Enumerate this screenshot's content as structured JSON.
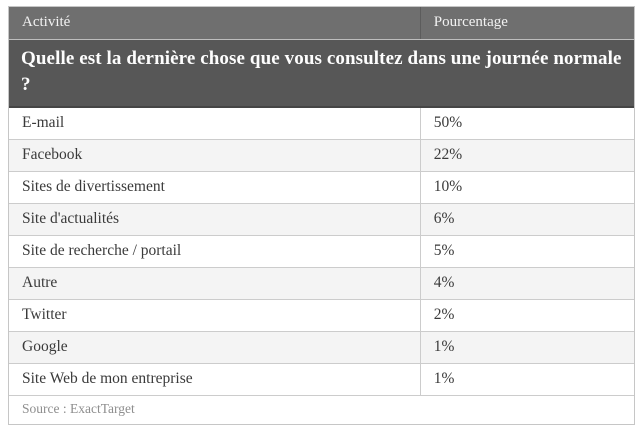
{
  "table": {
    "title": "Quelle est la dernière chose que vous consultez dans une journée normale ?",
    "columns": {
      "activity": "Activité",
      "percent": "Pourcentage"
    },
    "rows": [
      {
        "activity": "E-mail",
        "percent": "50%"
      },
      {
        "activity": "Facebook",
        "percent": "22%"
      },
      {
        "activity": "Sites de divertissement",
        "percent": "10%"
      },
      {
        "activity": "Site d'actualités",
        "percent": "6%"
      },
      {
        "activity": "Site de recherche / portail",
        "percent": "5%"
      },
      {
        "activity": "Autre",
        "percent": "4%"
      },
      {
        "activity": "Twitter",
        "percent": "2%"
      },
      {
        "activity": "Google",
        "percent": "1%"
      },
      {
        "activity": "Site Web de mon entreprise",
        "percent": "1%"
      }
    ],
    "source": "Source : ExactTarget"
  },
  "chart_data": {
    "type": "table",
    "title": "Quelle est la dernière chose que vous consultez dans une journée normale ?",
    "columns": [
      "Activité",
      "Pourcentage"
    ],
    "categories": [
      "E-mail",
      "Facebook",
      "Sites de divertissement",
      "Site d'actualités",
      "Site de recherche / portail",
      "Autre",
      "Twitter",
      "Google",
      "Site Web de mon entreprise"
    ],
    "values": [
      50,
      22,
      10,
      6,
      5,
      4,
      2,
      1,
      1
    ],
    "unit": "%",
    "source": "ExactTarget"
  },
  "colors": {
    "title_bg": "#575757",
    "header_bg": "#6f6f6f",
    "alt_row_bg": "#f4f4f4",
    "row_border": "#cccccc",
    "body_text": "#3a3a3a",
    "source_text": "#8e8e8e"
  }
}
